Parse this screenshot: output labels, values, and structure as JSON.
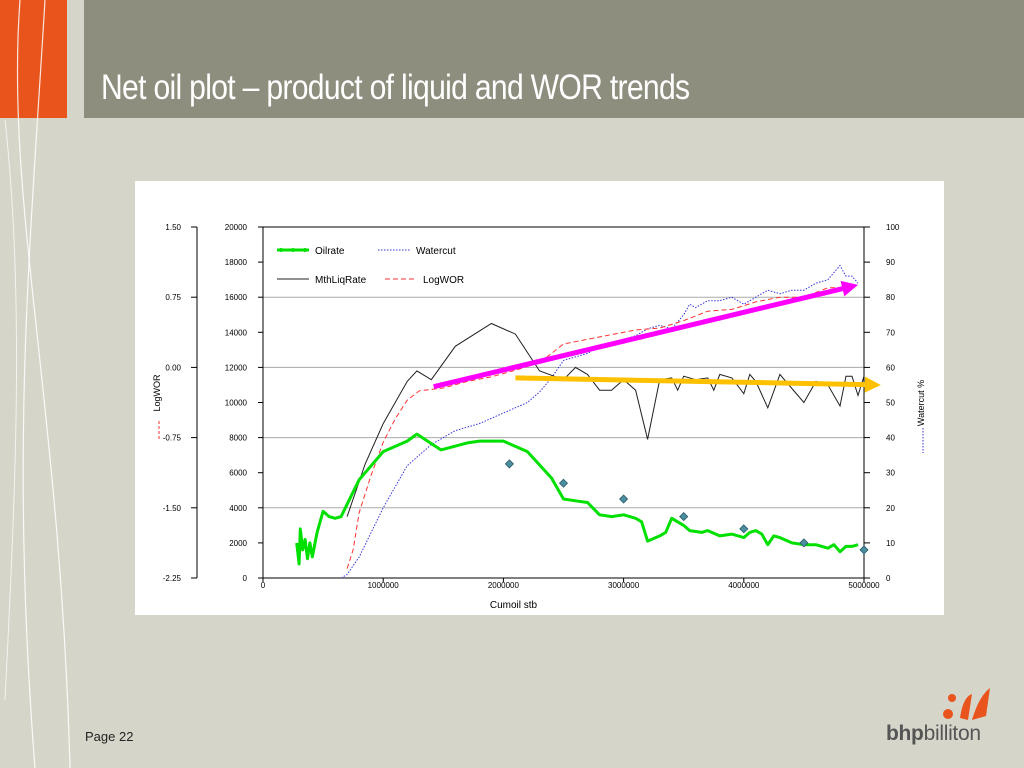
{
  "slide": {
    "title": "Net oil plot – product of liquid and WOR trends",
    "page_label": "Page 22",
    "brand_bold": "bhp",
    "brand_rest": "billiton"
  },
  "colors": {
    "header": "#8e8e7e",
    "accent_orange": "#e8541b",
    "background": "#d6d5ca",
    "oilrate": "#00e000",
    "mthliqrate": "#202020",
    "watercut": "#3333dd",
    "logwor": "#ff3333",
    "arrow_magenta": "#ff00ff",
    "arrow_yellow": "#ffc000",
    "diamond": "#4a8ea0"
  },
  "chart_data": {
    "type": "line",
    "xlabel": "Cumoil stb",
    "x_ticks": [
      "0",
      "1000000",
      "2000000",
      "3000000",
      "4000000",
      "5000000"
    ],
    "xlim": [
      0,
      5000000
    ],
    "left_axis": {
      "label": "",
      "ylim": [
        0,
        20000
      ],
      "ticks": [
        "0",
        "2000",
        "4000",
        "6000",
        "8000",
        "10000",
        "12000",
        "14000",
        "16000",
        "18000",
        "20000"
      ]
    },
    "logwor_axis": {
      "label": "LogWOR",
      "ylim": [
        -2.25,
        1.5
      ],
      "ticks": [
        "-2.25",
        "-1.50",
        "-0.75",
        "0.00",
        "0.75",
        "1.50"
      ]
    },
    "right_axis": {
      "label": "Watercut %",
      "ylim": [
        0,
        100
      ],
      "ticks": [
        "0",
        "10",
        "20",
        "30",
        "40",
        "50",
        "60",
        "70",
        "80",
        "90",
        "100"
      ]
    },
    "gridlines_at_left_values": [
      4000,
      8000,
      12000,
      16000
    ],
    "legend": {
      "position": "top-left",
      "entries": [
        {
          "name": "Oilrate",
          "style": "green-line-dots"
        },
        {
          "name": "Watercut",
          "style": "blue-dotted"
        },
        {
          "name": "MthLiqRate",
          "style": "black-solid"
        },
        {
          "name": "LogWOR",
          "style": "red-dashed"
        }
      ]
    },
    "series": [
      {
        "name": "Oilrate",
        "axis": "left",
        "points": [
          [
            280000,
            2000
          ],
          [
            300000,
            800
          ],
          [
            310000,
            2800
          ],
          [
            330000,
            1600
          ],
          [
            350000,
            2200
          ],
          [
            370000,
            1100
          ],
          [
            390000,
            2000
          ],
          [
            410000,
            1200
          ],
          [
            450000,
            2600
          ],
          [
            500000,
            3800
          ],
          [
            550000,
            3500
          ],
          [
            600000,
            3400
          ],
          [
            650000,
            3500
          ],
          [
            700000,
            4200
          ],
          [
            800000,
            5600
          ],
          [
            1000000,
            7200
          ],
          [
            1200000,
            7800
          ],
          [
            1280000,
            8200
          ],
          [
            1480000,
            7300
          ],
          [
            1700000,
            7700
          ],
          [
            1800000,
            7800
          ],
          [
            2000000,
            7800
          ],
          [
            2200000,
            7200
          ],
          [
            2400000,
            5700
          ],
          [
            2500000,
            4500
          ],
          [
            2600000,
            4400
          ],
          [
            2700000,
            4300
          ],
          [
            2800000,
            3600
          ],
          [
            2900000,
            3500
          ],
          [
            3000000,
            3600
          ],
          [
            3100000,
            3400
          ],
          [
            3150000,
            3200
          ],
          [
            3200000,
            2100
          ],
          [
            3300000,
            2400
          ],
          [
            3350000,
            2600
          ],
          [
            3400000,
            3400
          ],
          [
            3500000,
            3000
          ],
          [
            3550000,
            2700
          ],
          [
            3650000,
            2600
          ],
          [
            3700000,
            2700
          ],
          [
            3800000,
            2400
          ],
          [
            3900000,
            2500
          ],
          [
            4000000,
            2300
          ],
          [
            4050000,
            2600
          ],
          [
            4100000,
            2700
          ],
          [
            4150000,
            2500
          ],
          [
            4200000,
            1900
          ],
          [
            4250000,
            2400
          ],
          [
            4300000,
            2300
          ],
          [
            4400000,
            2000
          ],
          [
            4500000,
            1900
          ],
          [
            4600000,
            1900
          ],
          [
            4700000,
            1700
          ],
          [
            4750000,
            1900
          ],
          [
            4800000,
            1500
          ],
          [
            4850000,
            1800
          ],
          [
            4900000,
            1800
          ],
          [
            4950000,
            1900
          ]
        ]
      },
      {
        "name": "MthLiqRate",
        "axis": "left",
        "points": [
          [
            700000,
            3500
          ],
          [
            850000,
            6500
          ],
          [
            1000000,
            8800
          ],
          [
            1200000,
            11200
          ],
          [
            1280000,
            11800
          ],
          [
            1400000,
            11300
          ],
          [
            1600000,
            13200
          ],
          [
            1900000,
            14500
          ],
          [
            2100000,
            13900
          ],
          [
            2300000,
            11800
          ],
          [
            2500000,
            11300
          ],
          [
            2600000,
            12000
          ],
          [
            2700000,
            11600
          ],
          [
            2800000,
            10700
          ],
          [
            2900000,
            10700
          ],
          [
            3000000,
            11300
          ],
          [
            3100000,
            10700
          ],
          [
            3200000,
            7900
          ],
          [
            3300000,
            11300
          ],
          [
            3400000,
            11400
          ],
          [
            3450000,
            10700
          ],
          [
            3500000,
            11500
          ],
          [
            3600000,
            11300
          ],
          [
            3700000,
            11400
          ],
          [
            3750000,
            10700
          ],
          [
            3800000,
            11600
          ],
          [
            3900000,
            11400
          ],
          [
            4000000,
            10500
          ],
          [
            4050000,
            11600
          ],
          [
            4100000,
            11200
          ],
          [
            4200000,
            9700
          ],
          [
            4300000,
            11600
          ],
          [
            4400000,
            10800
          ],
          [
            4500000,
            10000
          ],
          [
            4600000,
            11200
          ],
          [
            4700000,
            11000
          ],
          [
            4800000,
            9800
          ],
          [
            4850000,
            11500
          ],
          [
            4900000,
            11500
          ],
          [
            4950000,
            10400
          ],
          [
            5000000,
            11500
          ]
        ]
      },
      {
        "name": "Watercut",
        "axis": "right",
        "points": [
          [
            650000,
            0
          ],
          [
            700000,
            1
          ],
          [
            800000,
            6
          ],
          [
            900000,
            13
          ],
          [
            1000000,
            20
          ],
          [
            1100000,
            26
          ],
          [
            1200000,
            32
          ],
          [
            1300000,
            35
          ],
          [
            1400000,
            38
          ],
          [
            1500000,
            40
          ],
          [
            1600000,
            42
          ],
          [
            1700000,
            43
          ],
          [
            1800000,
            44
          ],
          [
            2000000,
            47
          ],
          [
            2200000,
            50
          ],
          [
            2300000,
            53
          ],
          [
            2400000,
            57
          ],
          [
            2500000,
            62
          ],
          [
            2600000,
            63
          ],
          [
            2700000,
            64
          ],
          [
            2800000,
            66
          ],
          [
            2900000,
            67
          ],
          [
            3000000,
            68
          ],
          [
            3100000,
            69
          ],
          [
            3200000,
            71
          ],
          [
            3300000,
            72
          ],
          [
            3400000,
            71
          ],
          [
            3500000,
            75
          ],
          [
            3550000,
            78
          ],
          [
            3600000,
            77
          ],
          [
            3700000,
            79
          ],
          [
            3800000,
            79
          ],
          [
            3900000,
            80
          ],
          [
            4000000,
            78
          ],
          [
            4050000,
            79
          ],
          [
            4100000,
            80
          ],
          [
            4200000,
            82
          ],
          [
            4300000,
            81
          ],
          [
            4400000,
            82
          ],
          [
            4500000,
            82
          ],
          [
            4600000,
            84
          ],
          [
            4700000,
            85
          ],
          [
            4750000,
            87
          ],
          [
            4800000,
            89
          ],
          [
            4850000,
            86
          ],
          [
            4900000,
            86
          ],
          [
            4950000,
            84
          ]
        ]
      },
      {
        "name": "LogWOR",
        "axis": "logwor",
        "points": [
          [
            700000,
            -2.15
          ],
          [
            750000,
            -1.95
          ],
          [
            800000,
            -1.55
          ],
          [
            900000,
            -1.15
          ],
          [
            1000000,
            -0.8
          ],
          [
            1100000,
            -0.55
          ],
          [
            1200000,
            -0.35
          ],
          [
            1300000,
            -0.25
          ],
          [
            1500000,
            -0.22
          ],
          [
            1700000,
            -0.15
          ],
          [
            1900000,
            -0.1
          ],
          [
            2100000,
            -0.03
          ],
          [
            2300000,
            0.05
          ],
          [
            2400000,
            0.15
          ],
          [
            2500000,
            0.25
          ],
          [
            2700000,
            0.3
          ],
          [
            2900000,
            0.35
          ],
          [
            3100000,
            0.4
          ],
          [
            3300000,
            0.42
          ],
          [
            3500000,
            0.5
          ],
          [
            3700000,
            0.6
          ],
          [
            3900000,
            0.62
          ],
          [
            4100000,
            0.7
          ],
          [
            4300000,
            0.75
          ],
          [
            4500000,
            0.75
          ],
          [
            4700000,
            0.85
          ],
          [
            4900000,
            0.85
          ]
        ]
      },
      {
        "name": "diamonds",
        "axis": "left",
        "points": [
          [
            2050000,
            6500
          ],
          [
            2500000,
            5400
          ],
          [
            3000000,
            4500
          ],
          [
            3500000,
            3500
          ],
          [
            4000000,
            2800
          ],
          [
            4500000,
            2000
          ],
          [
            5000000,
            1600
          ]
        ]
      }
    ],
    "annotations": [
      {
        "type": "arrow",
        "color": "magenta",
        "from": [
          1420000,
          10900
        ],
        "to": [
          4950000,
          16700
        ]
      },
      {
        "type": "arrow",
        "color": "yellow",
        "from": [
          2100000,
          11400
        ],
        "to": [
          5140000,
          11000
        ]
      }
    ]
  }
}
